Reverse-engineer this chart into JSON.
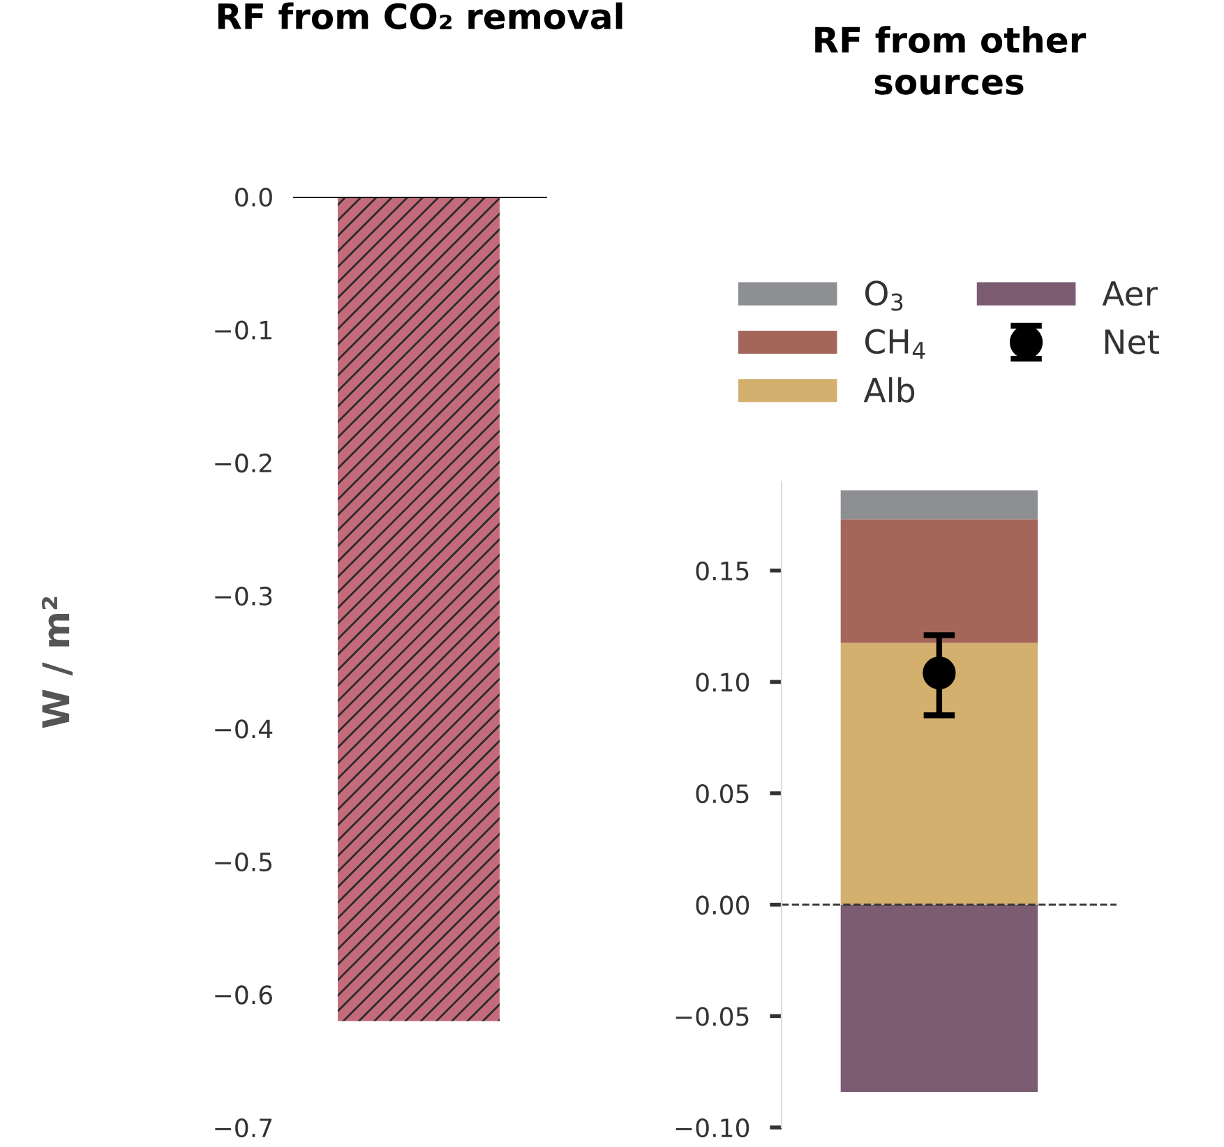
{
  "chart_data": [
    {
      "type": "bar",
      "title": "RF from CO₂ removal",
      "ylabel": "W / m²",
      "categories": [
        null
      ],
      "series": [
        {
          "color": "#c46b7b",
          "values": [
            -0.62
          ]
        }
      ],
      "ylim": [
        -0.7,
        0.0
      ],
      "yticks": [
        {
          "value": 0.0,
          "label": "0.0"
        },
        {
          "value": -0.1,
          "label": "−0.1"
        },
        {
          "value": -0.2,
          "label": "−0.2"
        },
        {
          "value": -0.3,
          "label": "−0.3"
        },
        {
          "value": -0.4,
          "label": "−0.4"
        },
        {
          "value": -0.5,
          "label": "−0.5"
        },
        {
          "value": -0.6,
          "label": "−0.6"
        },
        {
          "value": -0.7,
          "label": "−0.7"
        }
      ],
      "ref_lines": [
        {
          "axis": "y",
          "value": 0.0,
          "color": "#000000",
          "line_style": "solid"
        }
      ],
      "grid": false
    },
    {
      "type": "bar",
      "title": "RF from other\nsources",
      "categories": [
        null
      ],
      "stacked": true,
      "series": [
        {
          "name": "Alb",
          "color": "#d4b06f",
          "values": [
            0.1175
          ]
        },
        {
          "name": "CH$_{4}$",
          "color": "#a5665a",
          "values": [
            0.0555
          ]
        },
        {
          "name": "O$_{3}$",
          "color": "#8e8f93",
          "values": [
            0.013
          ]
        },
        {
          "name": "Aer",
          "color": "#7b5c72",
          "values": [
            -0.084
          ]
        },
        {
          "name": "Net",
          "type": "scatter",
          "color": "#000000",
          "values": [
            0.104
          ],
          "errors": [
            [
              0.085,
              0.121
            ]
          ],
          "marker": "circle"
        }
      ],
      "ylim": [
        -0.1,
        0.19
      ],
      "yticks": [
        {
          "value": 0.15,
          "label": "0.15"
        },
        {
          "value": 0.1,
          "label": "0.10"
        },
        {
          "value": 0.05,
          "label": "0.05"
        },
        {
          "value": 0.0,
          "label": "0.00"
        },
        {
          "value": -0.05,
          "label": "−0.05"
        },
        {
          "value": -0.1,
          "label": "−0.10"
        }
      ],
      "ref_lines": [
        {
          "axis": "y",
          "value": 0.0,
          "color": "#333333",
          "line_style": "dashed"
        }
      ],
      "legend": "top",
      "grid": false
    }
  ]
}
